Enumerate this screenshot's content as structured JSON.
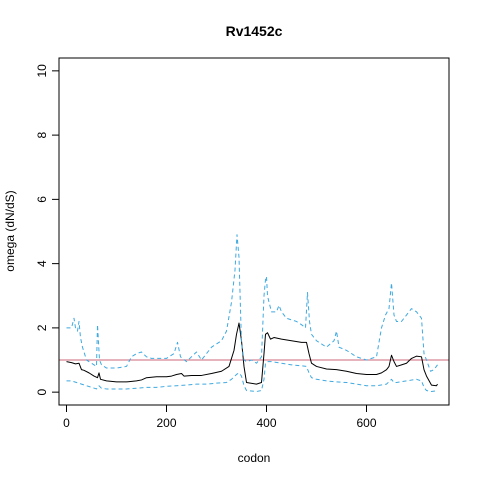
{
  "chart_data": {
    "type": "line",
    "title": "Rv1452c",
    "xlabel": "codon",
    "ylabel": "omega (dN/dS)",
    "xlim": [
      -15,
      765
    ],
    "ylim": [
      -0.4,
      10.4
    ],
    "xticks": [
      0,
      200,
      400,
      600
    ],
    "yticks": [
      0,
      2,
      4,
      6,
      8,
      10
    ],
    "grid": false,
    "reference_line": {
      "y": 1.0,
      "color": "#cc6677"
    },
    "colors": {
      "mean": "#000000",
      "ci": "#3fa9e0"
    },
    "series": [
      {
        "role": "mean",
        "style": "solid",
        "points": [
          [
            0,
            0.95
          ],
          [
            10,
            0.92
          ],
          [
            18,
            0.88
          ],
          [
            25,
            0.9
          ],
          [
            30,
            0.7
          ],
          [
            35,
            0.68
          ],
          [
            45,
            0.6
          ],
          [
            55,
            0.5
          ],
          [
            62,
            0.45
          ],
          [
            65,
            0.6
          ],
          [
            68,
            0.4
          ],
          [
            80,
            0.35
          ],
          [
            100,
            0.32
          ],
          [
            120,
            0.32
          ],
          [
            140,
            0.35
          ],
          [
            150,
            0.38
          ],
          [
            160,
            0.45
          ],
          [
            180,
            0.48
          ],
          [
            200,
            0.48
          ],
          [
            210,
            0.5
          ],
          [
            220,
            0.55
          ],
          [
            230,
            0.58
          ],
          [
            235,
            0.5
          ],
          [
            250,
            0.52
          ],
          [
            270,
            0.52
          ],
          [
            290,
            0.58
          ],
          [
            310,
            0.65
          ],
          [
            325,
            0.8
          ],
          [
            335,
            1.3
          ],
          [
            340,
            1.8
          ],
          [
            345,
            2.15
          ],
          [
            350,
            1.6
          ],
          [
            355,
            0.8
          ],
          [
            360,
            0.3
          ],
          [
            380,
            0.25
          ],
          [
            390,
            0.3
          ],
          [
            395,
            1.2
          ],
          [
            398,
            1.8
          ],
          [
            402,
            1.85
          ],
          [
            408,
            1.65
          ],
          [
            415,
            1.7
          ],
          [
            430,
            1.65
          ],
          [
            450,
            1.6
          ],
          [
            470,
            1.55
          ],
          [
            480,
            1.55
          ],
          [
            485,
            1.2
          ],
          [
            490,
            0.9
          ],
          [
            500,
            0.8
          ],
          [
            520,
            0.72
          ],
          [
            540,
            0.7
          ],
          [
            560,
            0.65
          ],
          [
            580,
            0.58
          ],
          [
            600,
            0.55
          ],
          [
            620,
            0.55
          ],
          [
            630,
            0.6
          ],
          [
            640,
            0.7
          ],
          [
            645,
            0.8
          ],
          [
            650,
            1.15
          ],
          [
            655,
            0.95
          ],
          [
            660,
            0.8
          ],
          [
            670,
            0.85
          ],
          [
            680,
            0.9
          ],
          [
            690,
            1.05
          ],
          [
            700,
            1.12
          ],
          [
            710,
            1.1
          ],
          [
            715,
            0.7
          ],
          [
            720,
            0.5
          ],
          [
            730,
            0.22
          ],
          [
            740,
            0.2
          ],
          [
            742,
            0.25
          ]
        ]
      },
      {
        "role": "upper",
        "style": "dashed",
        "points": [
          [
            0,
            2.0
          ],
          [
            10,
            2.0
          ],
          [
            15,
            2.3
          ],
          [
            18,
            2.0
          ],
          [
            22,
            1.9
          ],
          [
            25,
            2.2
          ],
          [
            28,
            1.7
          ],
          [
            32,
            1.4
          ],
          [
            40,
            1.0
          ],
          [
            50,
            0.9
          ],
          [
            60,
            0.8
          ],
          [
            62,
            2.1
          ],
          [
            66,
            1.0
          ],
          [
            70,
            0.85
          ],
          [
            80,
            0.75
          ],
          [
            100,
            0.75
          ],
          [
            120,
            0.8
          ],
          [
            130,
            1.1
          ],
          [
            140,
            1.2
          ],
          [
            150,
            1.25
          ],
          [
            160,
            1.1
          ],
          [
            170,
            1.05
          ],
          [
            180,
            1.05
          ],
          [
            200,
            1.05
          ],
          [
            215,
            1.2
          ],
          [
            222,
            1.55
          ],
          [
            228,
            1.1
          ],
          [
            240,
            0.95
          ],
          [
            250,
            1.1
          ],
          [
            260,
            1.25
          ],
          [
            270,
            1.0
          ],
          [
            280,
            1.2
          ],
          [
            290,
            1.4
          ],
          [
            310,
            1.6
          ],
          [
            320,
            1.9
          ],
          [
            330,
            2.8
          ],
          [
            337,
            3.8
          ],
          [
            341,
            4.9
          ],
          [
            345,
            4.2
          ],
          [
            350,
            1.5
          ],
          [
            355,
            1.0
          ],
          [
            360,
            0.95
          ],
          [
            370,
            1.0
          ],
          [
            380,
            0.9
          ],
          [
            390,
            1.1
          ],
          [
            395,
            3.0
          ],
          [
            398,
            3.5
          ],
          [
            400,
            3.6
          ],
          [
            402,
            3.0
          ],
          [
            405,
            2.8
          ],
          [
            410,
            2.5
          ],
          [
            420,
            2.5
          ],
          [
            425,
            2.7
          ],
          [
            430,
            2.5
          ],
          [
            440,
            2.3
          ],
          [
            460,
            2.2
          ],
          [
            470,
            2.1
          ],
          [
            478,
            2.0
          ],
          [
            482,
            3.1
          ],
          [
            486,
            2.2
          ],
          [
            490,
            1.8
          ],
          [
            500,
            1.6
          ],
          [
            520,
            1.4
          ],
          [
            535,
            1.6
          ],
          [
            540,
            1.9
          ],
          [
            545,
            1.4
          ],
          [
            560,
            1.3
          ],
          [
            580,
            1.1
          ],
          [
            600,
            1.0
          ],
          [
            620,
            1.1
          ],
          [
            630,
            2.0
          ],
          [
            638,
            2.4
          ],
          [
            645,
            2.6
          ],
          [
            650,
            3.4
          ],
          [
            655,
            2.4
          ],
          [
            660,
            2.2
          ],
          [
            670,
            2.2
          ],
          [
            680,
            2.4
          ],
          [
            690,
            2.6
          ],
          [
            700,
            2.5
          ],
          [
            710,
            2.3
          ],
          [
            715,
            1.2
          ],
          [
            720,
            1.0
          ],
          [
            728,
            0.65
          ],
          [
            735,
            0.7
          ],
          [
            742,
            0.85
          ]
        ]
      },
      {
        "role": "lower",
        "style": "dashed",
        "points": [
          [
            0,
            0.35
          ],
          [
            10,
            0.35
          ],
          [
            20,
            0.3
          ],
          [
            30,
            0.25
          ],
          [
            40,
            0.2
          ],
          [
            50,
            0.15
          ],
          [
            60,
            0.1
          ],
          [
            65,
            0.2
          ],
          [
            70,
            0.12
          ],
          [
            80,
            0.1
          ],
          [
            100,
            0.1
          ],
          [
            120,
            0.1
          ],
          [
            140,
            0.12
          ],
          [
            160,
            0.15
          ],
          [
            180,
            0.15
          ],
          [
            200,
            0.18
          ],
          [
            220,
            0.2
          ],
          [
            240,
            0.22
          ],
          [
            260,
            0.25
          ],
          [
            280,
            0.25
          ],
          [
            300,
            0.28
          ],
          [
            320,
            0.3
          ],
          [
            330,
            0.4
          ],
          [
            340,
            0.55
          ],
          [
            345,
            0.6
          ],
          [
            350,
            0.5
          ],
          [
            355,
            0.2
          ],
          [
            360,
            0.05
          ],
          [
            380,
            0.02
          ],
          [
            390,
            0.05
          ],
          [
            395,
            0.4
          ],
          [
            398,
            0.9
          ],
          [
            402,
            0.95
          ],
          [
            410,
            0.95
          ],
          [
            430,
            0.9
          ],
          [
            450,
            0.85
          ],
          [
            470,
            0.82
          ],
          [
            480,
            0.8
          ],
          [
            485,
            0.6
          ],
          [
            490,
            0.45
          ],
          [
            500,
            0.4
          ],
          [
            520,
            0.35
          ],
          [
            540,
            0.32
          ],
          [
            560,
            0.3
          ],
          [
            580,
            0.25
          ],
          [
            600,
            0.2
          ],
          [
            620,
            0.2
          ],
          [
            640,
            0.25
          ],
          [
            650,
            0.4
          ],
          [
            655,
            0.3
          ],
          [
            660,
            0.3
          ],
          [
            680,
            0.35
          ],
          [
            700,
            0.4
          ],
          [
            710,
            0.35
          ],
          [
            715,
            0.15
          ],
          [
            720,
            0.05
          ],
          [
            730,
            0.02
          ],
          [
            742,
            0.05
          ]
        ]
      }
    ]
  }
}
